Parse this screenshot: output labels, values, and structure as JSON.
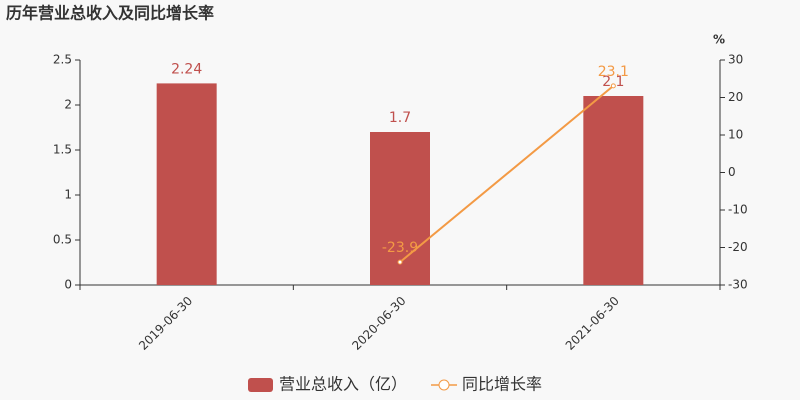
{
  "chart_data": {
    "type": "bar",
    "title": "历年营业总收入及同比增长率",
    "y2_label": "%",
    "categories": [
      "2019-06-30",
      "2020-06-30",
      "2021-06-30"
    ],
    "series": [
      {
        "name": "营业总收入（亿）",
        "type": "bar",
        "color": "#c0504d",
        "values": [
          2.24,
          1.7,
          2.1
        ]
      },
      {
        "name": "同比增长率",
        "type": "line",
        "axis": "y2",
        "color": "#f39a45",
        "values": [
          null,
          -23.9,
          23.1
        ]
      }
    ],
    "ylim": [
      0,
      2.5
    ],
    "yticks": [
      0,
      0.5,
      1,
      1.5,
      2,
      2.5
    ],
    "y2lim": [
      -30,
      30
    ],
    "y2ticks": [
      -30,
      -20,
      -10,
      0,
      10,
      20,
      30
    ]
  }
}
